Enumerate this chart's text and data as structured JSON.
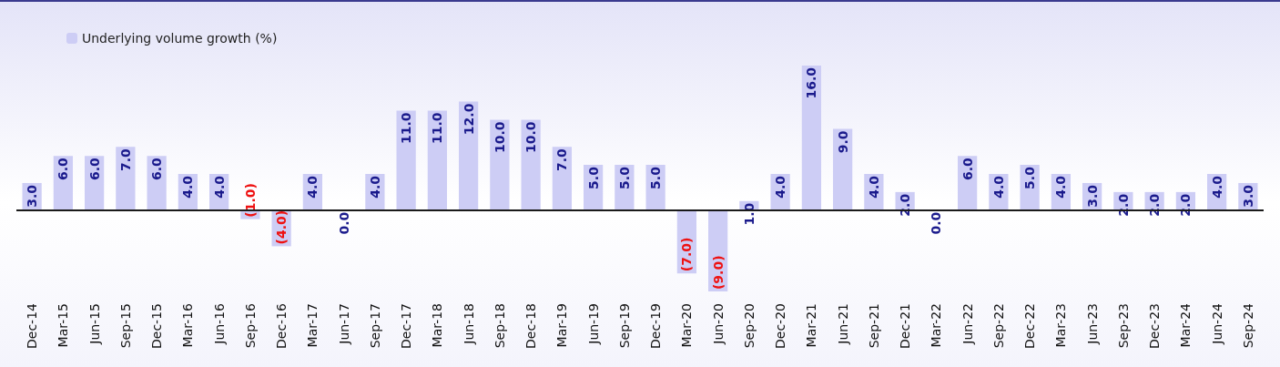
{
  "chart_data": {
    "type": "bar",
    "categories": [
      "Dec-14",
      "Mar-15",
      "Jun-15",
      "Sep-15",
      "Dec-15",
      "Mar-16",
      "Jun-16",
      "Sep-16",
      "Dec-16",
      "Mar-17",
      "Jun-17",
      "Sep-17",
      "Dec-17",
      "Mar-18",
      "Jun-18",
      "Sep-18",
      "Dec-18",
      "Mar-19",
      "Jun-19",
      "Sep-19",
      "Dec-19",
      "Mar-20",
      "Jun-20",
      "Sep-20",
      "Dec-20",
      "Mar-21",
      "Jun-21",
      "Sep-21",
      "Dec-21",
      "Mar-22",
      "Jun-22",
      "Sep-22",
      "Dec-22",
      "Mar-23",
      "Jun-23",
      "Sep-23",
      "Dec-23",
      "Mar-24",
      "Jun-24",
      "Sep-24"
    ],
    "series": [
      {
        "name": "Underlying volume growth (%)",
        "color": "#cdcdf5",
        "values": [
          3,
          6,
          6,
          7,
          6,
          4,
          4,
          -1,
          -4,
          4,
          0,
          4,
          11,
          11,
          12,
          10,
          10,
          7,
          5,
          5,
          5,
          -7,
          -9,
          1,
          4,
          16,
          9,
          4,
          2,
          0,
          6,
          4,
          5,
          4,
          3,
          2,
          2,
          2,
          4,
          3
        ],
        "value_labels": [
          "3.0",
          "6.0",
          "6.0",
          "7.0",
          "6.0",
          "4.0",
          "4.0",
          "(1.0)",
          "(4.0)",
          "4.0",
          "0.0",
          "4.0",
          "11.0",
          "11.0",
          "12.0",
          "10.0",
          "10.0",
          "7.0",
          "5.0",
          "5.0",
          "5.0",
          "(7.0)",
          "(9.0)",
          "1.0",
          "4.0",
          "16.0",
          "9.0",
          "4.0",
          "2.0",
          "0.0",
          "6.0",
          "4.0",
          "5.0",
          "4.0",
          "3.0",
          "2.0",
          "2.0",
          "2.0",
          "4.0",
          "3.0"
        ]
      }
    ],
    "ref_lines": [
      {
        "axis": "y",
        "value": 0,
        "color": "#1a1a1a"
      }
    ],
    "legend": "top left",
    "grid": false
  }
}
